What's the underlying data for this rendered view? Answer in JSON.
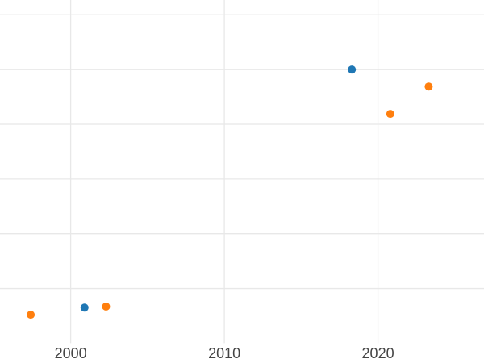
{
  "chart_data": {
    "type": "scatter",
    "title": "",
    "subtitle": "",
    "xlabel": "",
    "ylabel": "",
    "legend": "none",
    "grid": true,
    "x_tick_labels": [
      "2000",
      "2010",
      "2020"
    ],
    "x_tick_values": [
      2000,
      2010,
      2020
    ],
    "x_gridline_values": [
      2000,
      2010,
      2020
    ],
    "y_gridline_values": [
      1,
      2,
      3,
      4,
      5,
      6
    ],
    "y_tick_labels_visible": false,
    "x_range": [
      1995.4,
      2026.9
    ],
    "y_range": [
      0,
      6.27
    ],
    "y_units_note": "y-axis labels not visible in view; values estimated in gridline units (1 unit per horizontal gridline, bottom of plot = 0)",
    "series": [
      {
        "name": "blue-series",
        "color": "#1f77b4",
        "points": [
          {
            "x": 2000.9,
            "y": 0.65
          },
          {
            "x": 2018.3,
            "y": 5.0
          }
        ]
      },
      {
        "name": "orange-series",
        "color": "#ff7f0e",
        "points": [
          {
            "x": 1997.4,
            "y": 0.52
          },
          {
            "x": 2002.3,
            "y": 0.67
          },
          {
            "x": 2020.8,
            "y": 4.19
          },
          {
            "x": 2023.3,
            "y": 4.69
          }
        ]
      }
    ],
    "marker_radius_px": 5,
    "colors": {
      "background": "#ffffff",
      "gridline": "#e8e8e8",
      "tick_label": "#444444"
    }
  }
}
